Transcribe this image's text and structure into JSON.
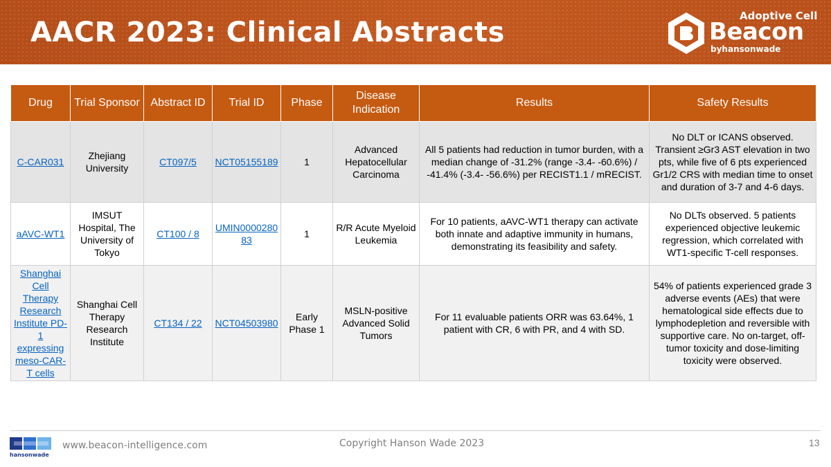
{
  "slide": {
    "title": "AACR 2023: Clinical Abstracts",
    "page_number": "13"
  },
  "logo": {
    "top": "Adoptive Cell",
    "main": "Beacon",
    "by": "by",
    "brand": "hansonwade"
  },
  "table": {
    "headers": [
      "Drug",
      "Trial Sponsor",
      "Abstract ID",
      "Trial ID",
      "Phase",
      "Disease Indication",
      "Results",
      "Safety Results"
    ],
    "rows": [
      {
        "drug": "C-CAR031",
        "sponsor": "Zhejiang University",
        "abstract_id": "CT097/5",
        "trial_id": "NCT05155189",
        "phase": "1",
        "indication": "Advanced Hepatocellular Carcinoma",
        "results": "All 5 patients had reduction in tumor burden, with a median change of -31.2% (range -3.4- -60.6%) / -41.4% (-3.4- -56.6%) per RECIST1.1 / mRECIST.",
        "safety": "No DLT or ICANS observed. Transient ≥Gr3 AST elevation in two pts, while five of 6 pts experienced Gr1/2 CRS with median time to onset and duration of 3-7 and 4-6 days."
      },
      {
        "drug": "aAVC-WT1",
        "sponsor": "IMSUT Hospital, The University of Tokyo",
        "abstract_id": "CT100 / 8",
        "trial_id": "UMIN000028083",
        "phase": "1",
        "indication": "R/R Acute Myeloid Leukemia",
        "results": "For 10 patients, aAVC-WT1 therapy can activate both innate and adaptive immunity in humans, demonstrating its feasibility and safety.",
        "safety": "No DLTs observed. 5 patients experienced objective leukemic regression, which correlated with WT1-specific T-cell responses."
      },
      {
        "drug": "Shanghai Cell Therapy Research Institute PD-1 expressing meso-CAR-T cells",
        "sponsor": "Shanghai Cell Therapy Research Institute",
        "abstract_id": "CT134 / 22",
        "trial_id": "NCT04503980",
        "phase": "Early Phase 1",
        "indication": "MSLN-positive Advanced Solid Tumors",
        "results": "For 11 evaluable patients ORR was 63.64%, 1 patient with CR, 6 with PR, and 4 with SD.",
        "safety": "54% of patients experienced grade 3 adverse events (AEs) that were hematological side effects due to lymphodepletion and reversible with supportive care. No on-target, off-tumor toxicity and dose-limiting toxicity were observed."
      }
    ]
  },
  "footer": {
    "url": "www.beacon-intelligence.com",
    "copyright": "Copyright Hanson Wade 2023",
    "hw_logo_text": "hansonwade"
  },
  "colors": {
    "header_bg": "#c0541c",
    "table_header_bg": "#c55a11",
    "link": "#0563c1"
  }
}
